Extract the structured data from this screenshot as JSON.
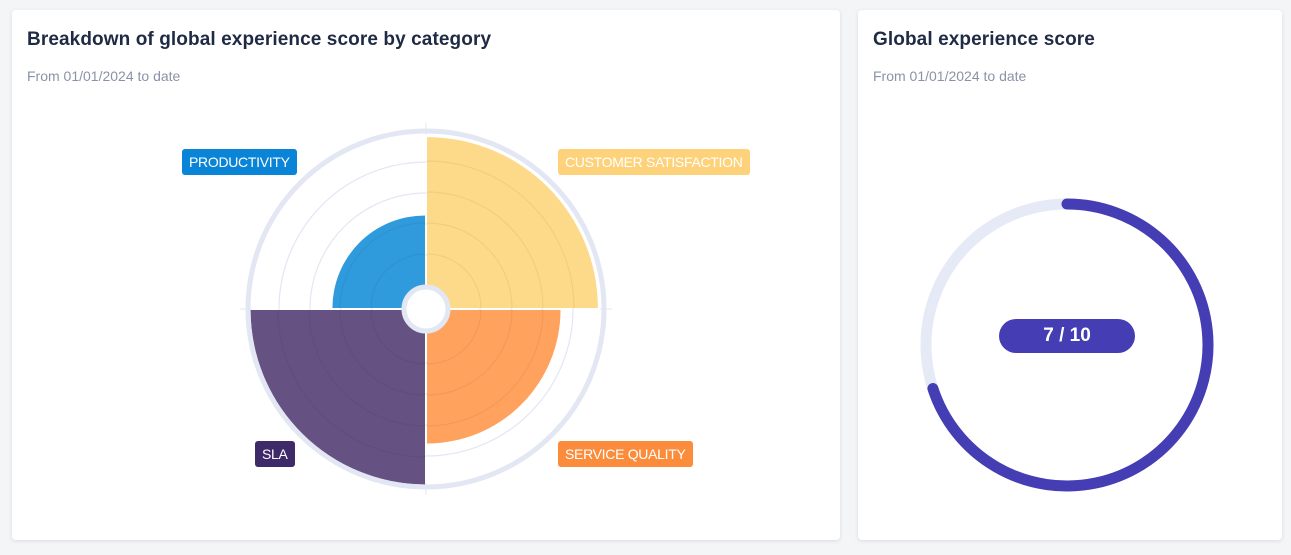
{
  "breakdown_card": {
    "title": "Breakdown of global experience score by category",
    "subtitle": "From 01/01/2024 to date"
  },
  "global_card": {
    "title": "Global experience score",
    "subtitle": "From 01/01/2024 to date",
    "score_label": "7 / 10"
  },
  "colors": {
    "productivity": "#2f9bdc",
    "productivity_label": "#0a84d6",
    "customer_satisfaction": "#fdd98a",
    "customer_satisfaction_label": "#fdd27a",
    "service_quality": "#fea25e",
    "service_quality_label": "#fb8c3c",
    "sla": "#655283",
    "sla_label": "#3e2a68",
    "grid": "#e2e7f3",
    "gauge_fill": "#443db3",
    "gauge_track": "#e5eaf6"
  },
  "chart_data": [
    {
      "type": "polar-area",
      "title": "Breakdown of global experience score by category",
      "subtitle": "From 01/01/2024 to date",
      "categories": [
        "PRODUCTIVITY",
        "CUSTOMER SATISFACTION",
        "SERVICE QUALITY",
        "SLA"
      ],
      "values": [
        5.2,
        9.6,
        7.5,
        9.8
      ],
      "rlim": [
        0,
        10
      ],
      "grid": true,
      "legend": "labels-at-quadrants"
    },
    {
      "type": "gauge",
      "title": "Global experience score",
      "subtitle": "From 01/01/2024 to date",
      "value": 7,
      "max": 10,
      "label": "7 / 10"
    }
  ]
}
